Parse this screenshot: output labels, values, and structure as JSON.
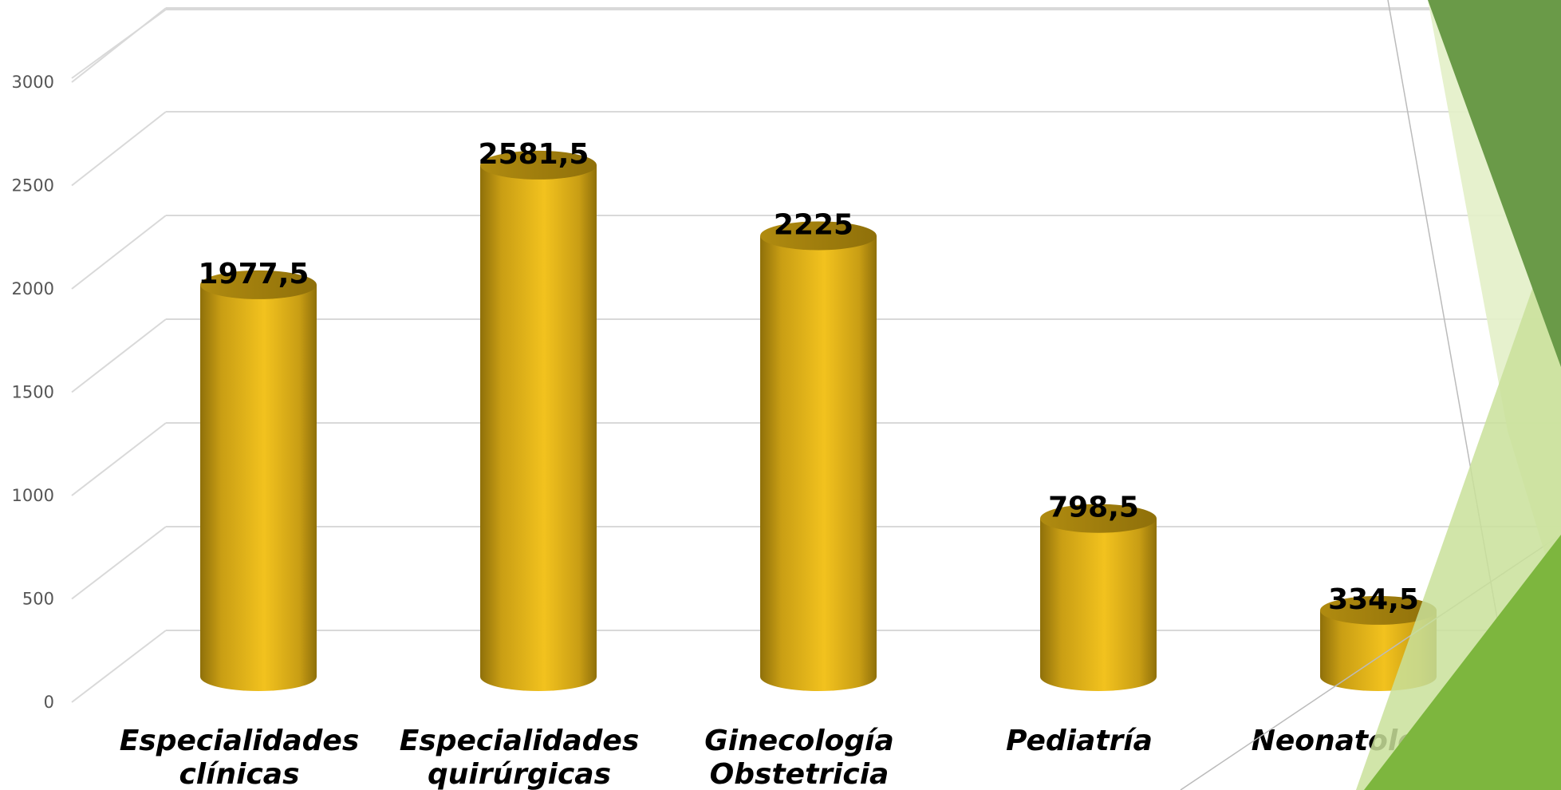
{
  "chart_data": {
    "type": "bar",
    "style": "3d-cylinder",
    "categories": [
      [
        "Especialidades",
        "clínicas"
      ],
      [
        "Especialidades",
        "quirúrgicas"
      ],
      [
        "Ginecología",
        "Obstetricia"
      ],
      [
        "Pediatría"
      ],
      [
        "Neonatología"
      ]
    ],
    "values": [
      1977.5,
      2581.5,
      2225,
      798.5,
      334.5
    ],
    "data_labels": [
      "1977,5",
      "2581,5",
      "2225",
      "798,5",
      "334,5"
    ],
    "yticks": [
      "0",
      "500",
      "1000",
      "1500",
      "2000",
      "2500",
      "3000"
    ],
    "ylim": [
      0,
      3000
    ],
    "grid": true,
    "bar_color": "#F2C21E",
    "bar_shade_color": "#9C7A0C",
    "decoration_colors": [
      "#6A9A48",
      "#7DB63E",
      "#C9E09A",
      "#E3EFC8"
    ]
  }
}
